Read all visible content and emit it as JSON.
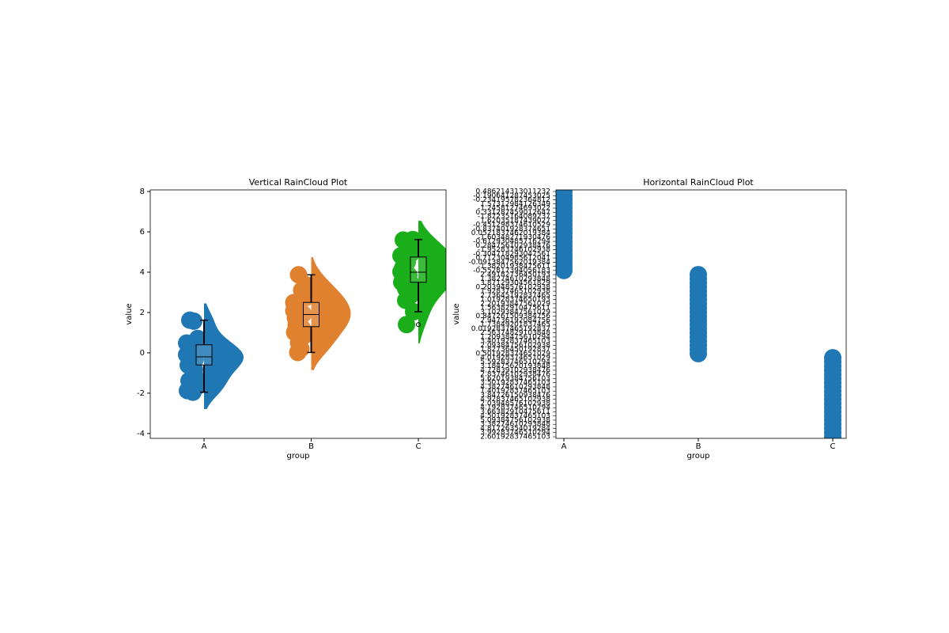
{
  "chart_data": [
    {
      "type": "raincloud",
      "title": "Vertical RainCloud Plot",
      "xlabel": "group",
      "ylabel": "value",
      "categories": [
        "A",
        "B",
        "C"
      ],
      "ylim": [
        -4.24,
        8.08
      ],
      "yticks": [
        -4,
        -2,
        0,
        2,
        4,
        6,
        8
      ],
      "groups": [
        {
          "color": "#1f77b4",
          "values": [
            0.486214313011232,
            -0.190641287453025,
            -0.234195782364812,
            1.57312984126349,
            -1.24581274693022,
            0.331287459012647,
            -1.87235164089237,
            1.62035187439027,
            -0.451298374610529,
            -0.837401928374651,
            0.0521837462019384,
            -1.60348271930476,
            -0.612930485716294,
            0.284756102938476,
            -1.95283746102938,
            -0.304718293047561,
            0.712304985612041,
            -0.0913847562019384,
            -1.38201938475611,
            -0.552817394056183
          ],
          "box": {
            "whislo": -1.95,
            "q1": -0.6,
            "median": -0.2,
            "q3": 0.4,
            "whishi": 1.62,
            "fliers": []
          }
        },
        {
          "color": "#e0812f",
          "values": [
            2.49182736450193,
            1.38274610293848,
            3.87129304561829,
            0.203948576102938,
            1.92837465102938,
            2.73645192837465,
            1.01928374650193,
            2.20193847561029,
            1.56382910475611,
            3.10293847561029,
            0.847261509384756,
            2.94736192084756,
            1.73849201837465,
            0.0192837465192837,
            2.56374829103848,
            1.20938475610294,
            3.40192837465103,
            2.09384756102938,
            1.82736450192837,
            0.501928374651029
          ],
          "box": {
            "whislo": 0.02,
            "q1": 1.3,
            "median": 1.9,
            "q3": 2.5,
            "whishi": 3.87,
            "fliers": []
          }
        },
        {
          "color": "#1aae1a",
          "values": [
            4.01928374651029,
            5.59283746510294,
            3.18475620193848,
            4.72839102938476,
            2.83746102938476,
            5.62019384756103,
            3.50192837465103,
            4.38274610293848,
            1.40192837465103,
            3.84726150938476,
            4.92837465102938,
            2.03948576102938,
            4.19283746510294,
            3.66382910475611,
            4.50192837465103,
            5.09384756102938,
            3.38274610293848,
            4.81726354019284,
            3.99283746510294,
            2.60192837465103
          ],
          "box": {
            "whislo": 2.04,
            "q1": 3.5,
            "median": 4.0,
            "q3": 4.75,
            "whishi": 5.62,
            "fliers": [
              1.4
            ]
          }
        }
      ]
    },
    {
      "type": "strip",
      "title": "Horizontal RainCloud Plot",
      "xlabel": "group",
      "ylabel": "value",
      "categories": [
        "A",
        "B",
        "C"
      ],
      "groups": [
        {
          "color": "#1f77b4",
          "values": [
            0.486214313011232,
            -0.190641287453025,
            -0.234195782364812,
            1.57312984126349,
            -1.24581274693022,
            0.331287459012647,
            -1.87235164089237,
            1.62035187439027,
            -0.451298374610529,
            -0.837401928374651,
            0.0521837462019384,
            -1.60348271930476,
            -0.612930485716294,
            0.284756102938476,
            -1.95283746102938,
            -0.304718293047561,
            0.712304985612041,
            -0.0913847562019384,
            -1.38201938475611,
            -0.552817394056183
          ]
        },
        {
          "color": "#1f77b4",
          "values": [
            2.49182736450193,
            1.38274610293848,
            3.87129304561829,
            0.203948576102938,
            1.92837465102938,
            2.73645192837465,
            1.01928374650193,
            2.20193847561029,
            1.56382910475611,
            3.10293847561029,
            0.847261509384756,
            2.94736192084756,
            1.73849201837465,
            0.0192837465192837,
            2.56374829103848,
            1.20938475610294,
            3.40192837465103,
            2.09384756102938,
            1.82736450192837,
            0.501928374651029
          ]
        },
        {
          "color": "#1f77b4",
          "values": [
            4.01928374651029,
            5.59283746510294,
            3.18475620193848,
            4.72839102938476,
            2.83746102938476,
            5.62019384756103,
            3.50192837465103,
            4.38274610293848,
            1.40192837465103,
            3.84726150938476,
            4.92837465102938,
            2.03948576102938,
            4.19283746510294,
            3.66382910475611,
            4.50192837465103,
            5.09384756102938,
            3.38274610293848,
            4.81726354019284,
            3.99283746510294,
            2.60192837465103
          ]
        }
      ]
    }
  ]
}
